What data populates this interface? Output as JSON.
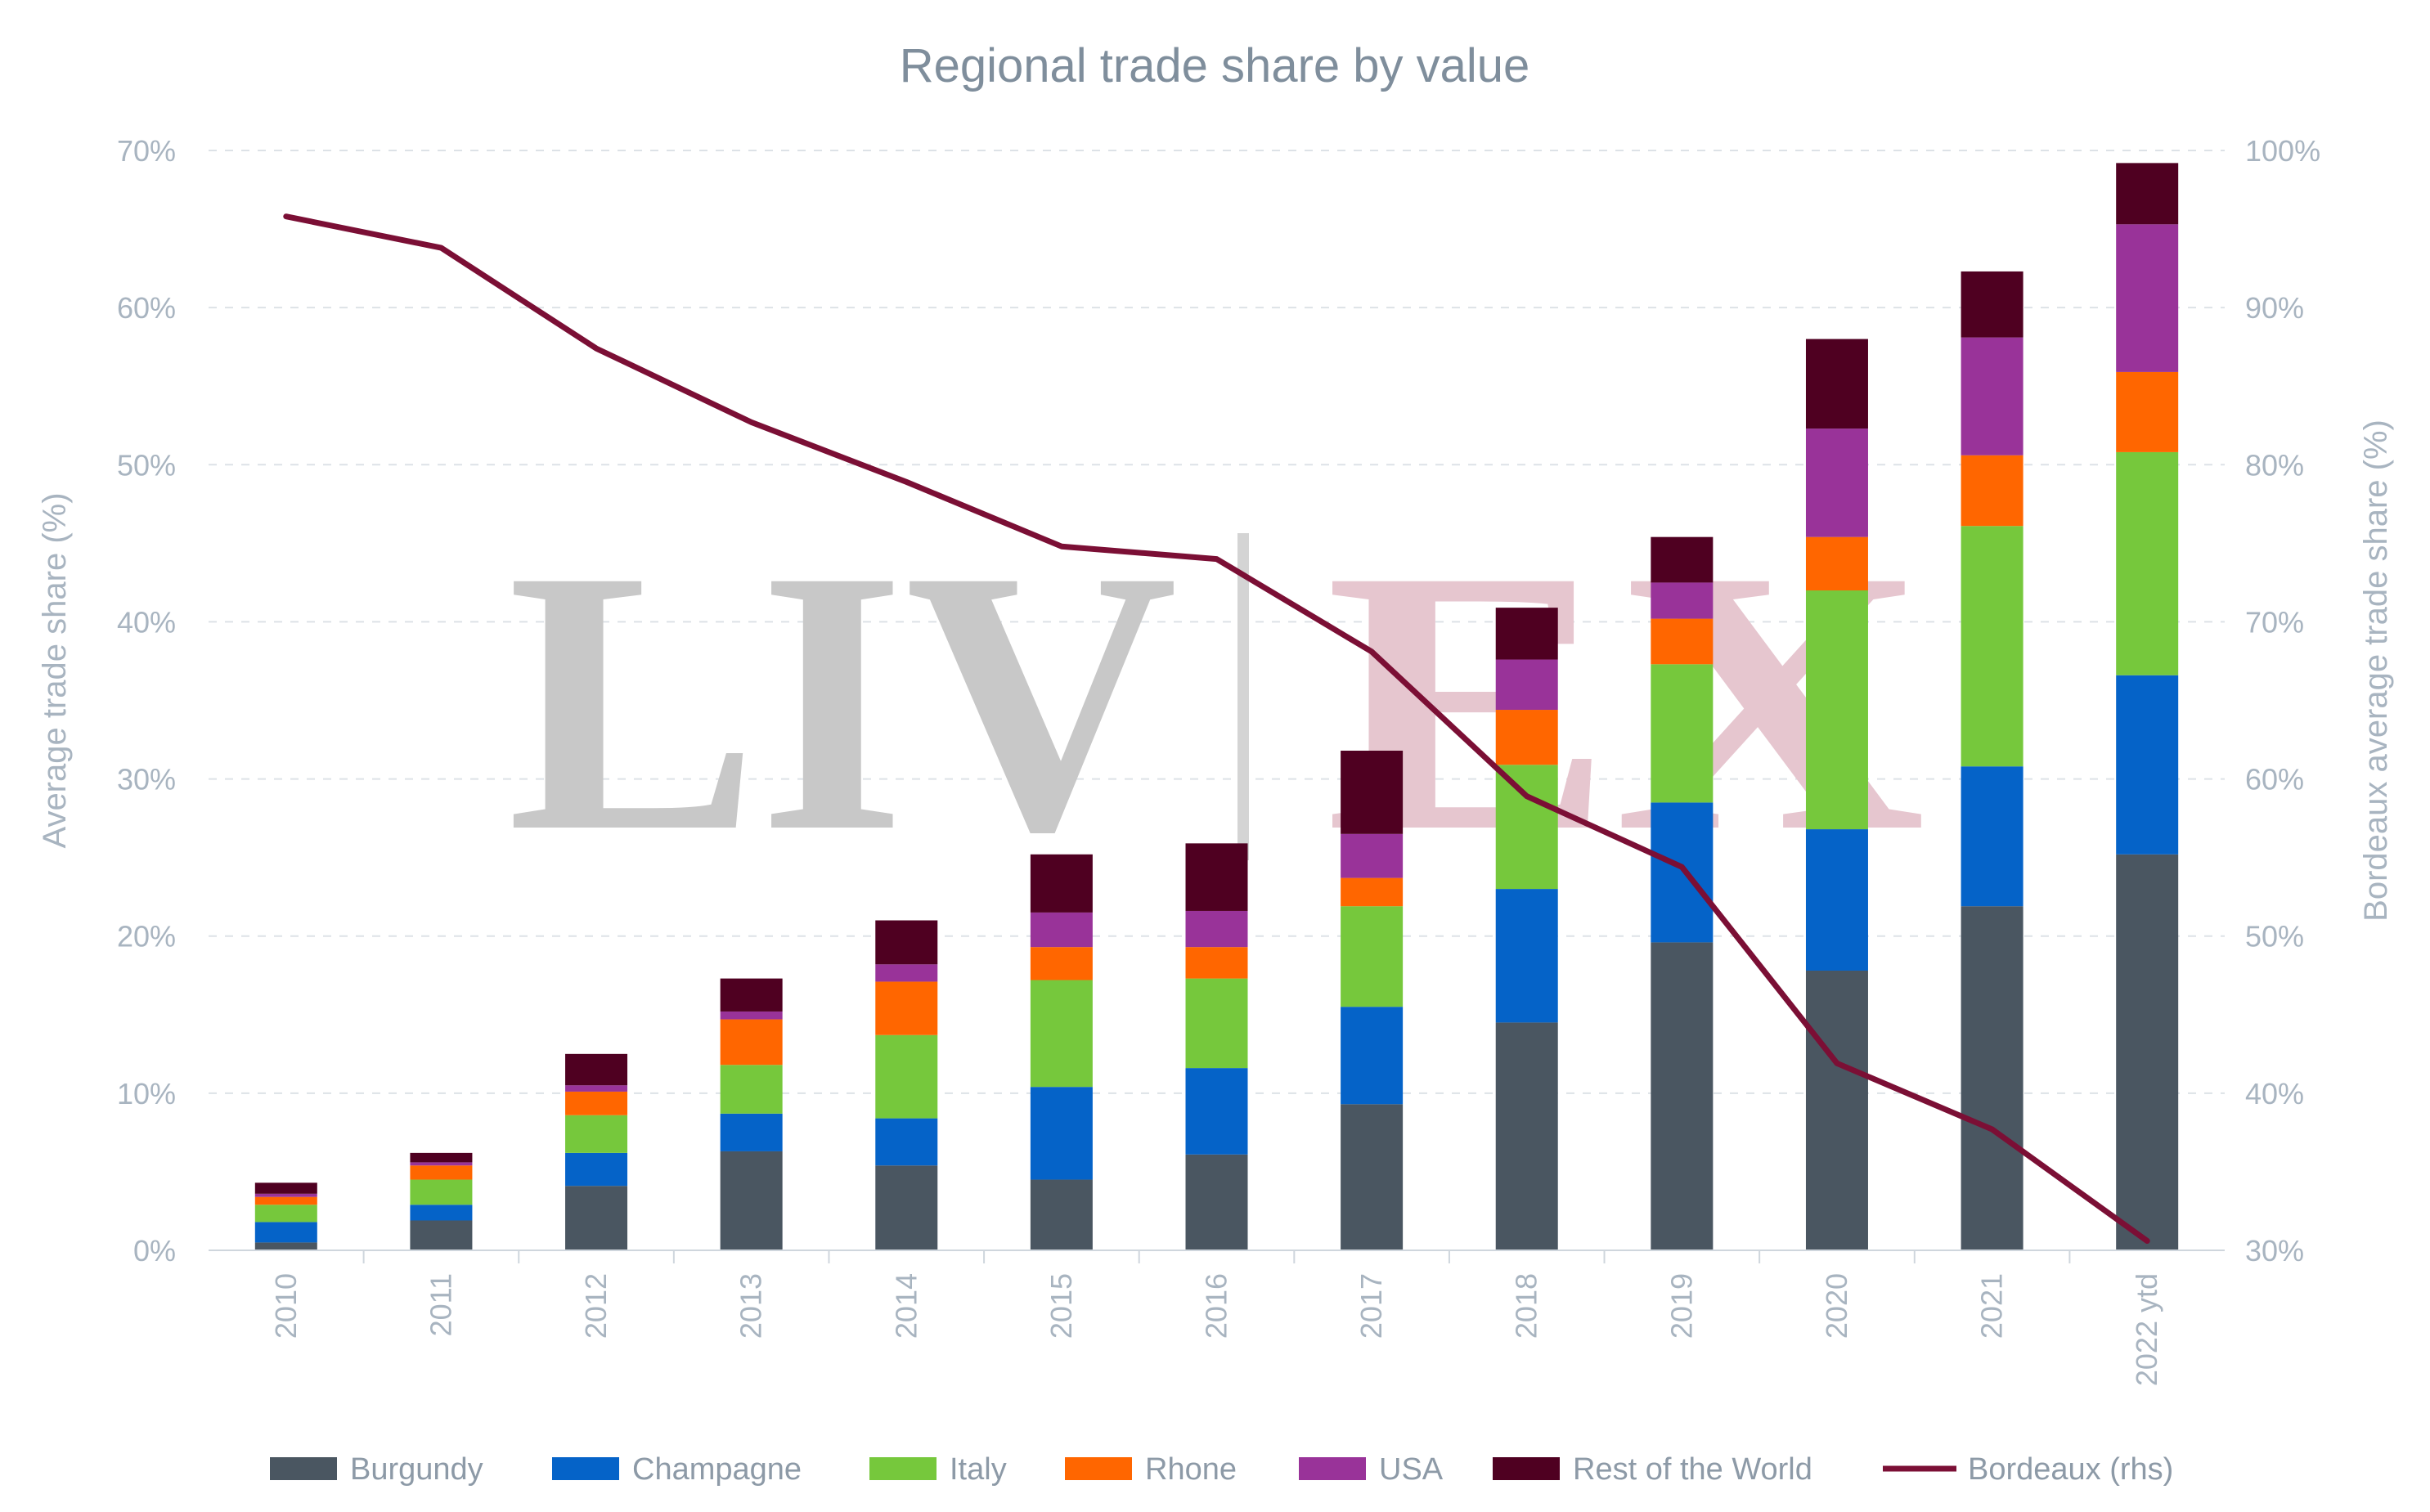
{
  "chart_data": {
    "type": "bar",
    "stacked": true,
    "title": "Regional trade share by value",
    "ylabel": "Average trade share (%)",
    "y2label": "Bordeaux average trade share (%)",
    "ylim": [
      0,
      70
    ],
    "y2lim": [
      30,
      100
    ],
    "y_ticks": [
      "0%",
      "10%",
      "20%",
      "30%",
      "40%",
      "50%",
      "60%",
      "70%"
    ],
    "y2_ticks": [
      "30%",
      "40%",
      "50%",
      "60%",
      "70%",
      "80%",
      "90%",
      "100%"
    ],
    "grid": true,
    "legend_position": "bottom",
    "categories": [
      "2010",
      "2011",
      "2012",
      "2013",
      "2014",
      "2015",
      "2016",
      "2017",
      "2018",
      "2019",
      "2020",
      "2021",
      "2022 ytd"
    ],
    "series": [
      {
        "name": "Burgundy",
        "color": "#4a5661",
        "values": [
          0.5,
          1.9,
          4.1,
          6.3,
          5.4,
          4.5,
          6.1,
          9.3,
          14.5,
          19.6,
          17.8,
          21.9,
          25.2
        ]
      },
      {
        "name": "Champagne",
        "color": "#0563c8",
        "values": [
          1.3,
          1.0,
          2.1,
          2.4,
          3.0,
          5.9,
          5.5,
          6.2,
          8.5,
          8.9,
          9.0,
          8.9,
          11.4
        ]
      },
      {
        "name": "Italy",
        "color": "#76c83c",
        "values": [
          1.1,
          1.6,
          2.4,
          3.1,
          5.3,
          6.8,
          5.7,
          6.4,
          7.9,
          8.8,
          15.2,
          15.3,
          14.2
        ]
      },
      {
        "name": "Rhone",
        "color": "#ff6600",
        "values": [
          0.5,
          0.9,
          1.5,
          2.9,
          3.4,
          2.1,
          2.0,
          1.8,
          3.5,
          2.9,
          3.4,
          4.5,
          5.1
        ]
      },
      {
        "name": "USA",
        "color": "#993399",
        "values": [
          0.2,
          0.2,
          0.4,
          0.5,
          1.1,
          2.2,
          2.3,
          2.8,
          3.2,
          2.3,
          6.9,
          7.5,
          9.4
        ]
      },
      {
        "name": "Rest of the World",
        "color": "#4f0021",
        "values": [
          0.7,
          0.6,
          2.0,
          2.1,
          2.8,
          3.7,
          4.3,
          5.3,
          3.3,
          2.9,
          5.7,
          4.2,
          3.9
        ]
      }
    ],
    "line_series": {
      "name": "Bordeaux (rhs)",
      "color": "#7b0f35",
      "axis": "right",
      "values": [
        95.8,
        93.8,
        87.4,
        82.7,
        78.9,
        74.8,
        74.0,
        68.1,
        58.9,
        54.4,
        41.9,
        37.7,
        30.6
      ]
    },
    "watermark": "LIV|EX"
  }
}
